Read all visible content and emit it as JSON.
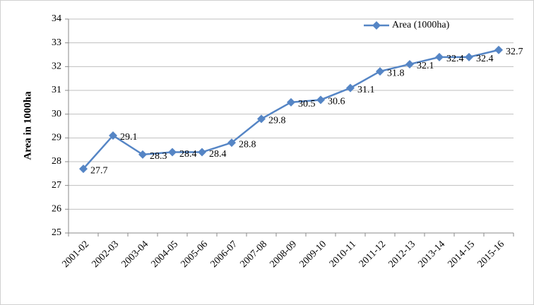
{
  "chart_data": {
    "type": "line",
    "y_label": "Area in 1000ha",
    "categories": [
      "2001-02",
      "2002-03",
      "2003-04",
      "2004-05",
      "2005-06",
      "2006-07",
      "2007-08",
      "2008-09",
      "2009-10",
      "2010-11",
      "2011-12",
      "2012-13",
      "2013-14",
      "2014-15",
      "2015-16"
    ],
    "series": [
      {
        "name": "Area (1000ha)",
        "color": "#5585c5",
        "values": [
          27.7,
          29.1,
          28.3,
          28.4,
          28.4,
          28.8,
          29.8,
          30.5,
          30.6,
          31.1,
          31.8,
          32.1,
          32.4,
          32.4,
          32.7
        ]
      }
    ],
    "ylim": [
      25,
      34
    ],
    "yticks": [
      25,
      26,
      27,
      28,
      29,
      30,
      31,
      32,
      33,
      34
    ],
    "grid": true,
    "legend": "top-right"
  }
}
